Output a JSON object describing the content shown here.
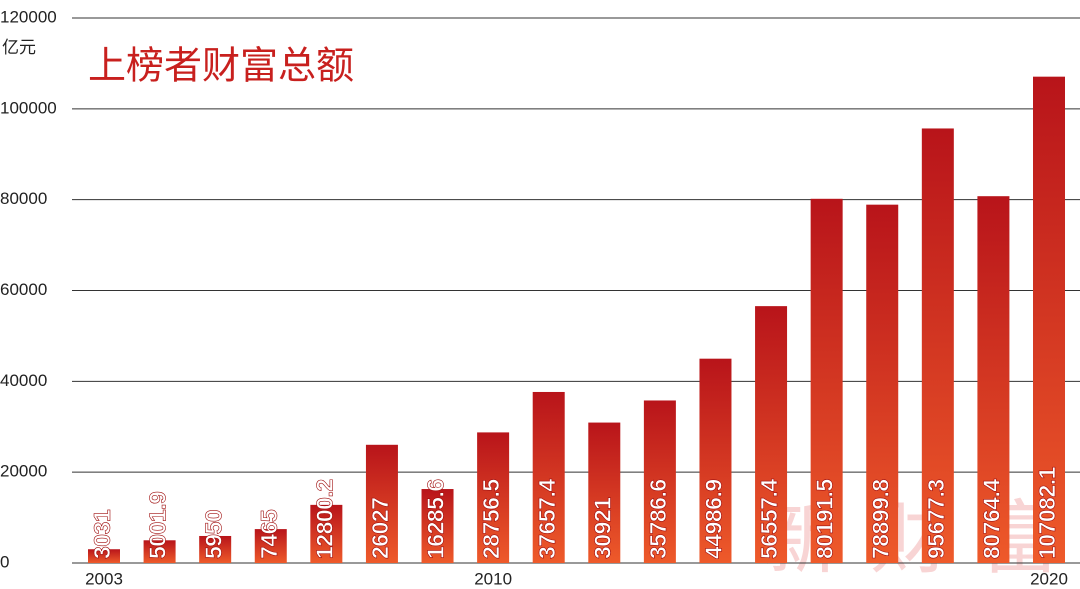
{
  "chart_data": {
    "type": "bar",
    "title": "上榜者财富总额",
    "y_unit": "亿元",
    "watermark": "新财富",
    "categories": [
      "2003",
      null,
      null,
      null,
      null,
      null,
      null,
      "2010",
      null,
      null,
      null,
      null,
      null,
      null,
      null,
      null,
      null,
      "2020"
    ],
    "values": [
      3031,
      5001.9,
      5950,
      7465,
      12800.2,
      26027,
      16285.6,
      28756.5,
      37657.4,
      30921,
      35786.6,
      44986.9,
      56557.4,
      80191.5,
      78899.8,
      95677.3,
      80764.4,
      107082.1
    ],
    "color": "#c8201e",
    "ylim": [
      0,
      120000
    ],
    "yticks": [
      0,
      20000,
      40000,
      60000,
      80000,
      100000,
      120000
    ],
    "grid": true
  }
}
